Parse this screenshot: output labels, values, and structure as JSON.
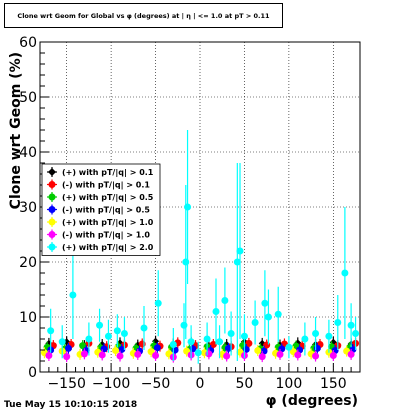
{
  "chart_data": {
    "type": "scatter",
    "title": "Clone wrt Geom for Global vs φ (degrees) at | η | <= 1.0 at pT > 0.11",
    "xlabel": "φ (degrees)",
    "ylabel": "Clone wrt Geom (%)",
    "xlim": [
      -180,
      180
    ],
    "ylim": [
      0,
      60
    ],
    "x_ticks": [
      "−150",
      "−100",
      "−50",
      "0",
      "50",
      "100",
      "150"
    ],
    "y_ticks": [
      "0",
      "10",
      "20",
      "30",
      "40",
      "50",
      "60"
    ],
    "grid": true,
    "legend_position": "middle-left",
    "series": [
      {
        "name": "(+) with pT/|q| > 0.1",
        "color": "#000000",
        "x": [
          -170,
          -150,
          -130,
          -110,
          -90,
          -70,
          -50,
          -30,
          -10,
          10,
          30,
          50,
          70,
          90,
          110,
          130,
          150,
          170
        ],
        "y": [
          5.2,
          5.5,
          4.8,
          5.0,
          5.3,
          4.9,
          5.6,
          5.1,
          5.4,
          4.7,
          5.0,
          5.5,
          5.2,
          4.9,
          5.3,
          5.0,
          5.4,
          5.1
        ]
      },
      {
        "name": "(-) with pT/|q| > 0.1",
        "color": "#ff0000",
        "x": [
          -165,
          -145,
          -125,
          -105,
          -85,
          -65,
          -45,
          -25,
          -5,
          15,
          35,
          55,
          75,
          95,
          115,
          135,
          155,
          175
        ],
        "y": [
          4.8,
          5.0,
          5.2,
          4.6,
          4.9,
          5.1,
          4.7,
          5.3,
          4.8,
          5.0,
          4.6,
          5.2,
          4.9,
          5.1,
          4.7,
          5.0,
          4.8,
          5.2
        ]
      },
      {
        "name": "(+) with pT/|q| > 0.5",
        "color": "#00cc00",
        "x": [
          -172,
          -152,
          -132,
          -112,
          -92,
          -72,
          -52,
          -32,
          -12,
          8,
          28,
          48,
          68,
          88,
          108,
          128,
          148,
          168
        ],
        "y": [
          4.5,
          4.2,
          4.8,
          4.4,
          4.6,
          4.3,
          4.7,
          4.5,
          4.1,
          4.6,
          4.4,
          4.8,
          4.2,
          4.5,
          4.7,
          4.3,
          4.6,
          4.4
        ]
      },
      {
        "name": "(-) with pT/|q| > 0.5",
        "color": "#0000ff",
        "x": [
          -168,
          -148,
          -128,
          -108,
          -88,
          -68,
          -48,
          -28,
          -8,
          12,
          32,
          52,
          72,
          92,
          112,
          132,
          152,
          172
        ],
        "y": [
          4.0,
          4.3,
          3.9,
          4.2,
          4.1,
          3.8,
          4.4,
          4.0,
          4.2,
          3.9,
          4.3,
          4.1,
          3.8,
          4.2,
          4.0,
          4.3,
          3.9,
          4.1
        ]
      },
      {
        "name": "(+) with pT/|q| > 1.0",
        "color": "#ffff00",
        "x": [
          -175,
          -155,
          -135,
          -115,
          -95,
          -75,
          -55,
          -35,
          -15,
          5,
          25,
          45,
          65,
          85,
          105,
          125,
          145,
          165
        ],
        "y": [
          3.5,
          3.8,
          3.2,
          3.6,
          3.9,
          3.4,
          3.7,
          3.3,
          3.8,
          3.5,
          3.2,
          3.6,
          3.9,
          3.4,
          3.7,
          3.3,
          3.6,
          3.8
        ]
      },
      {
        "name": "(-) with pT/|q| > 1.0",
        "color": "#ff00ff",
        "x": [
          -170,
          -150,
          -130,
          -110,
          -90,
          -70,
          -50,
          -30,
          -10,
          10,
          30,
          50,
          70,
          90,
          110,
          130,
          150,
          170
        ],
        "y": [
          3.0,
          2.8,
          3.3,
          3.1,
          2.9,
          3.2,
          3.0,
          2.7,
          3.1,
          3.3,
          2.9,
          3.0,
          2.8,
          3.2,
          3.1,
          2.9,
          3.0,
          3.2
        ]
      },
      {
        "name": "(+) with pT/|q| > 2.0",
        "color": "#00ffff",
        "x": [
          -168,
          -155,
          -143,
          -125,
          -113,
          -103,
          -93,
          -85,
          -63,
          -47,
          -30,
          -18,
          -16,
          -14,
          -10,
          -2,
          8,
          18,
          22,
          28,
          35,
          42,
          45,
          50,
          62,
          73,
          77,
          88,
          100,
          118,
          130,
          145,
          155,
          163,
          170,
          175
        ],
        "y": [
          7.5,
          5.5,
          14.0,
          6.0,
          8.5,
          6.5,
          7.5,
          7.0,
          8.0,
          12.5,
          5.0,
          8.5,
          20.0,
          30.0,
          5.5,
          3.5,
          6.0,
          11.0,
          5.5,
          13.0,
          7.0,
          20.0,
          22.0,
          6.5,
          9.0,
          12.5,
          10.0,
          10.5,
          4.5,
          6.0,
          7.0,
          6.5,
          9.0,
          18.0,
          8.5,
          7.0
        ],
        "yerr": [
          4,
          3,
          8,
          3,
          3,
          3,
          3,
          3,
          4,
          6,
          3,
          4,
          14,
          14,
          3,
          2,
          3,
          6,
          3,
          6,
          4,
          18,
          16,
          4,
          4,
          6,
          5,
          5,
          2,
          3,
          3,
          3,
          5,
          12,
          4,
          3
        ]
      }
    ]
  },
  "footer": {
    "date": "Tue May 15 10:10:15 2018"
  }
}
